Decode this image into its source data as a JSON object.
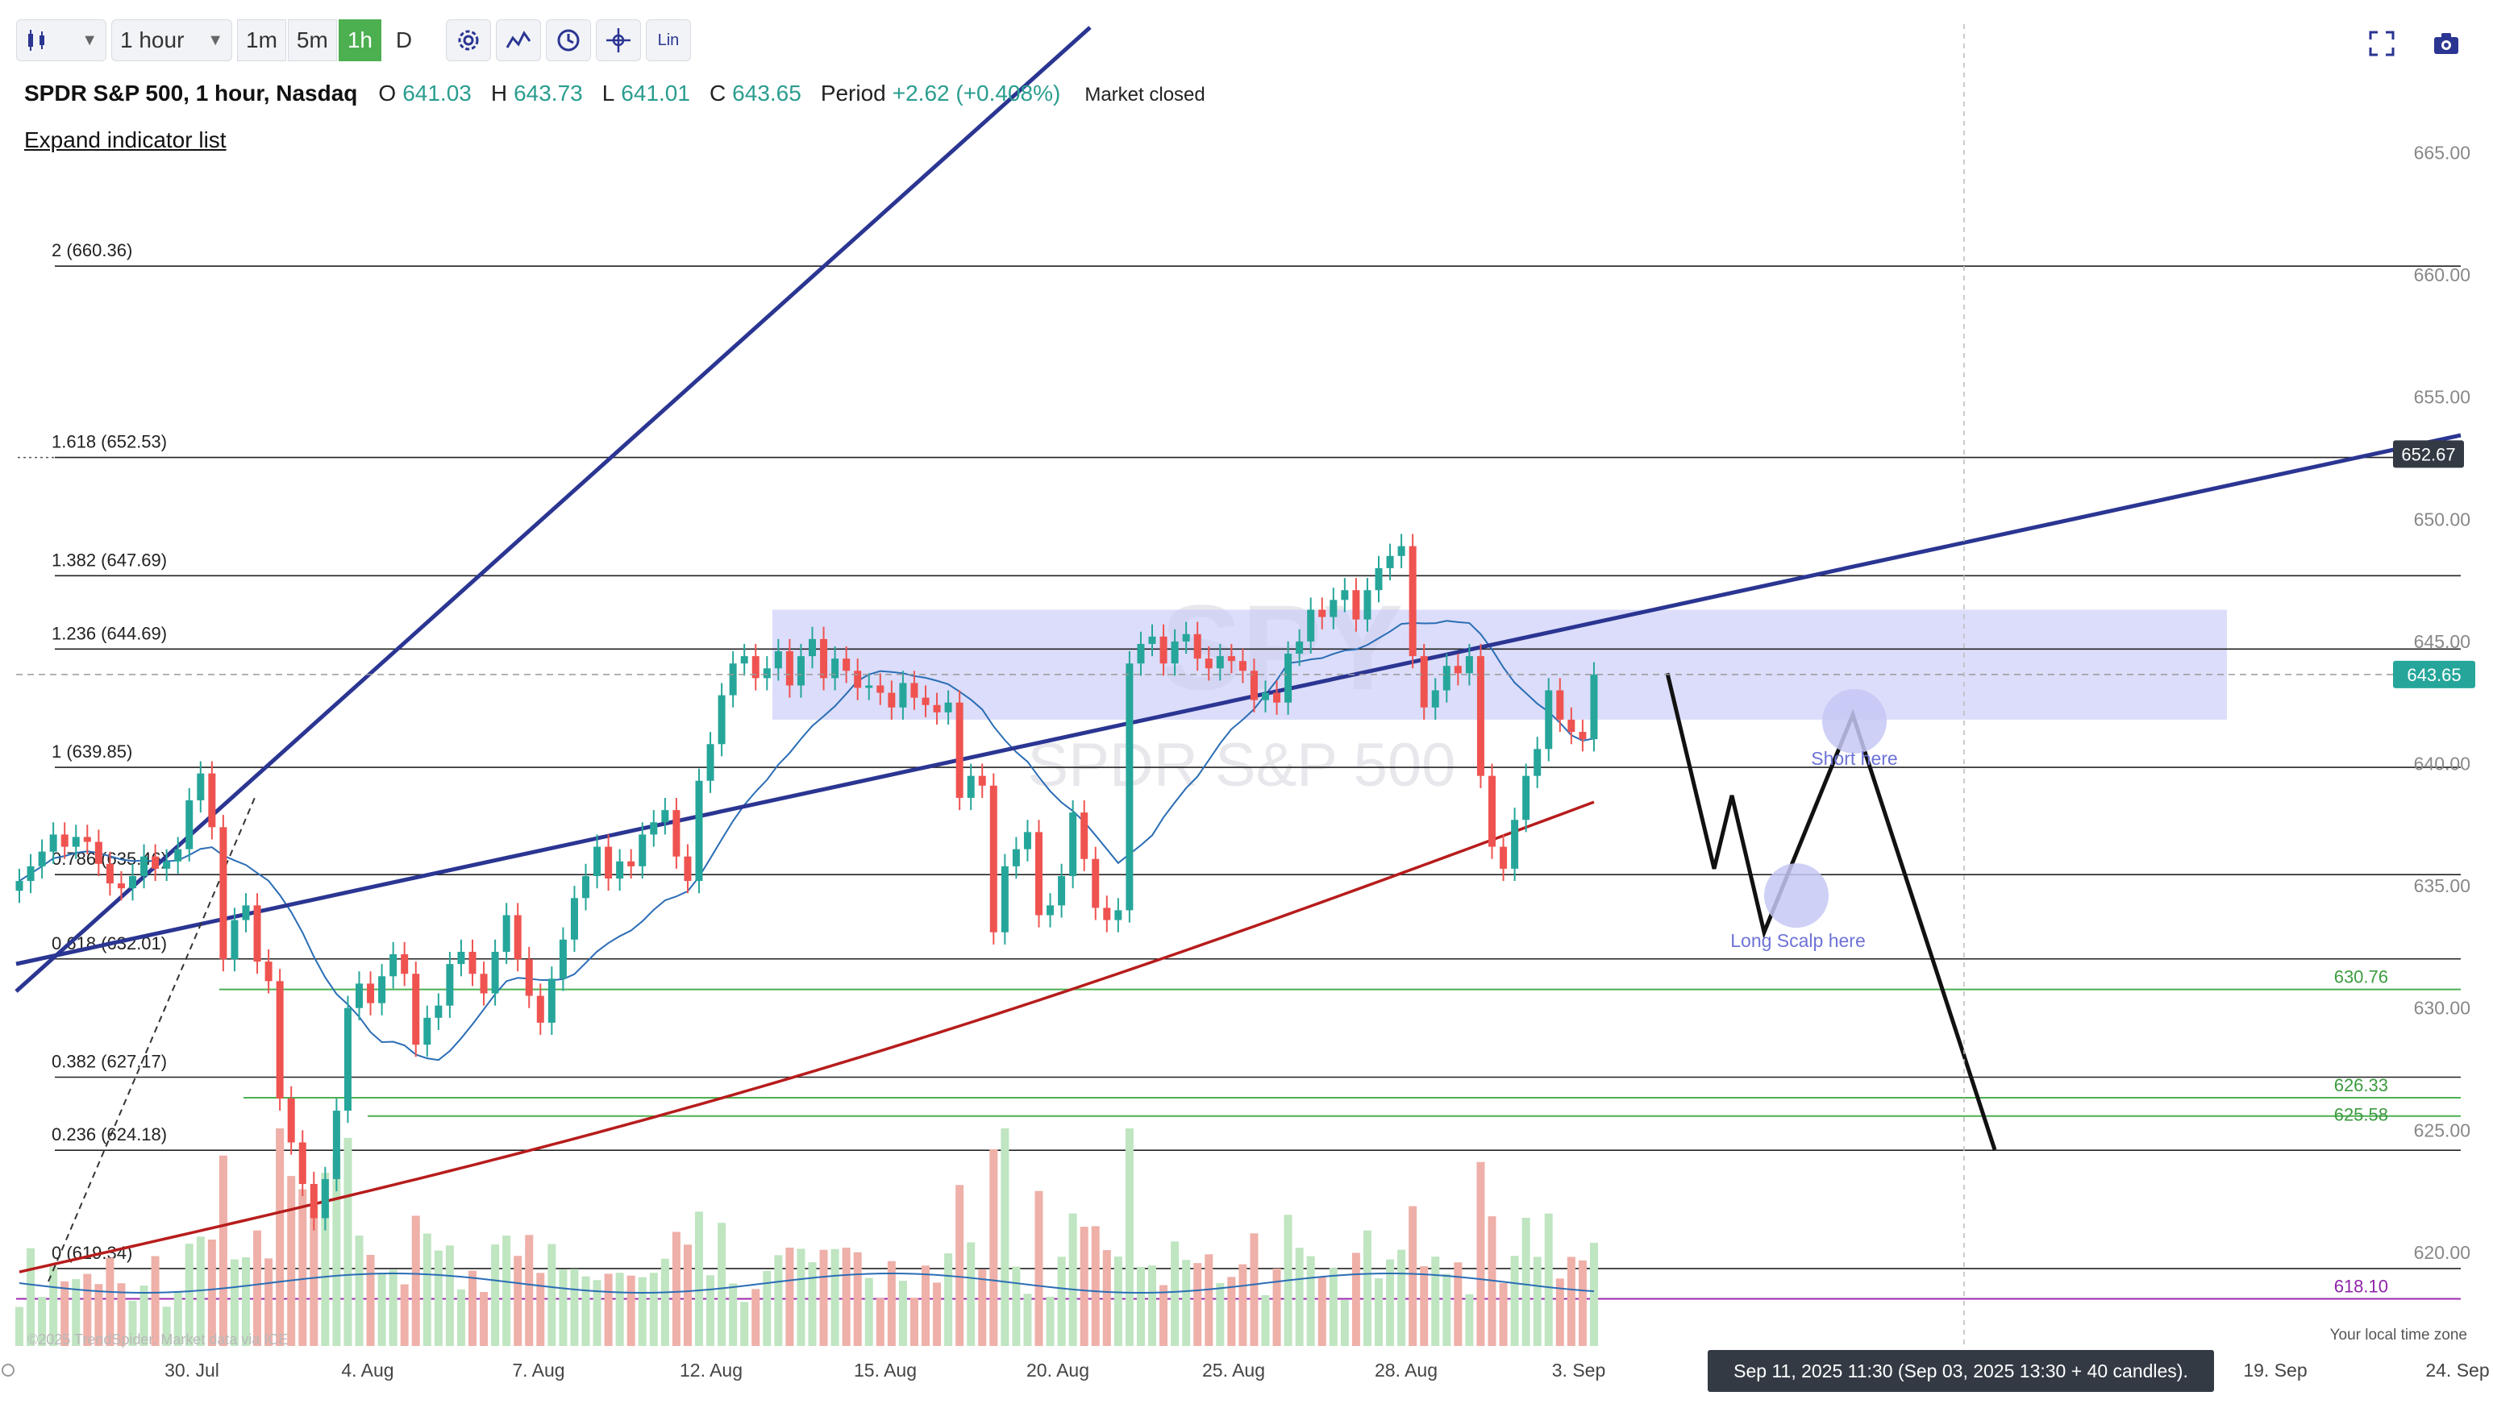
{
  "toolbar": {
    "chart_type_icon": "candlestick-icon",
    "interval_label": "1 hour",
    "timeframes": [
      "1m",
      "5m",
      "1h",
      "D"
    ],
    "active_timeframe": "1h",
    "icons": [
      "gear-icon",
      "indicators-icon",
      "clock-icon",
      "crosshair-icon"
    ],
    "scale_label": "Lin"
  },
  "header": {
    "symbol": "SPDR S&P 500, 1 hour, Nasdaq",
    "open_label": "O",
    "open": "641.03",
    "high_label": "H",
    "high": "643.73",
    "low_label": "L",
    "low": "641.01",
    "close_label": "C",
    "close": "643.65",
    "period_label": "Period",
    "period_change": "+2.62 (+0.408%)",
    "market_status": "Market closed",
    "expand_link": "Expand indicator list"
  },
  "top_right_icons": [
    "fullscreen-icon",
    "camera-icon"
  ],
  "watermark": {
    "big": "SPY",
    "small": "SPDR S&P 500"
  },
  "datetime_badge": "Sep 11, 2025 11:30 (Sep 03, 2025 13:30 + 40 candles).",
  "timezone_label": "Your local time zone",
  "copyright": "©2025 TrendSpider. Market data via ICE",
  "colors": {
    "up": "#26a69a",
    "down": "#ef5350",
    "trendline": "#2b3592",
    "zone": "#c7cbf7",
    "ma_blue": "#2a6db5",
    "ma_red": "#b71c1c",
    "support_green": "#4caf50",
    "fib": "#222222",
    "purple": "#9c27b0"
  },
  "chart_data": {
    "type": "candlestick",
    "title": "SPDR S&P 500, 1 hour, Nasdaq",
    "x_ticks": [
      "30. Jul",
      "4. Aug",
      "7. Aug",
      "12. Aug",
      "15. Aug",
      "20. Aug",
      "25. Aug",
      "28. Aug",
      "3. Sep",
      "19. Sep",
      "24. Sep"
    ],
    "y_ticks": [
      620.0,
      625.0,
      630.0,
      635.0,
      640.0,
      645.0,
      650.0,
      655.0,
      660.0,
      665.0
    ],
    "ylim": [
      617.0,
      671.0
    ],
    "last_price": 643.65,
    "price_marker": 652.67,
    "fib_levels": [
      {
        "label": "2 (660.36)",
        "value": 660.36
      },
      {
        "label": "1.618 (652.53)",
        "value": 652.53
      },
      {
        "label": "1.382 (647.69)",
        "value": 647.69
      },
      {
        "label": "1.236 (644.69)",
        "value": 644.69
      },
      {
        "label": "1 (639.85)",
        "value": 639.85
      },
      {
        "label": "0.786 (635.46)",
        "value": 635.46
      },
      {
        "label": "0.618 (632.01)",
        "value": 632.01
      },
      {
        "label": "0.382 (627.17)",
        "value": 627.17
      },
      {
        "label": "0.236 (624.18)",
        "value": 624.18
      },
      {
        "label": "0 (619.34)",
        "value": 619.34
      }
    ],
    "support_levels": [
      {
        "label": "630.76",
        "value": 630.76
      },
      {
        "label": "626.33",
        "value": 626.33
      },
      {
        "label": "625.58",
        "value": 625.58
      }
    ],
    "purple_level": {
      "label": "618.10",
      "value": 618.1
    },
    "zone": {
      "low": 641.8,
      "high": 646.3,
      "start": "13. Aug",
      "end": "16. Sep"
    },
    "annotations": [
      {
        "text": "Short here",
        "price": 642.0
      },
      {
        "text": "Long Scalp here",
        "price": 635.0
      }
    ],
    "projection_path": [
      643.7,
      635.7,
      638.7,
      633.1,
      642.0,
      624.2
    ],
    "candles_close": [
      635.2,
      635.8,
      636.4,
      637.1,
      636.6,
      637.0,
      636.8,
      635.9,
      635.1,
      634.9,
      635.4,
      636.2,
      635.7,
      636.0,
      636.5,
      638.5,
      639.6,
      637.4,
      632.0,
      633.6,
      634.2,
      631.9,
      631.1,
      626.3,
      624.5,
      622.8,
      621.4,
      623.0,
      625.8,
      630.0,
      631.0,
      630.2,
      631.3,
      632.2,
      631.4,
      628.5,
      629.6,
      630.1,
      631.8,
      632.3,
      631.4,
      630.6,
      632.3,
      633.8,
      632.0,
      630.5,
      629.4,
      631.2,
      632.8,
      634.5,
      635.4,
      636.6,
      635.3,
      636.0,
      635.8,
      637.1,
      637.6,
      638.1,
      636.2,
      635.2,
      639.3,
      640.8,
      642.8,
      644.1,
      644.4,
      643.5,
      643.9,
      644.6,
      643.2,
      644.4,
      645.1,
      643.5,
      644.3,
      643.8,
      643.1,
      643.2,
      642.9,
      642.3,
      643.3,
      642.7,
      642.4,
      642.1,
      642.5,
      638.6,
      639.5,
      639.1,
      633.1,
      635.8,
      636.5,
      637.2,
      633.8,
      634.2,
      635.4,
      638.0,
      636.1,
      634.1,
      633.6,
      634.0,
      644.1,
      644.9,
      645.2,
      644.1,
      645.0,
      645.3,
      644.3,
      643.9,
      644.4,
      644.2,
      643.8,
      642.6,
      642.9,
      642.5,
      644.5,
      645.0,
      646.3,
      646.0,
      646.7,
      647.1,
      645.9,
      647.1,
      648.0,
      648.5,
      648.9,
      644.4,
      642.3,
      643.0,
      644.0,
      643.7,
      644.4,
      639.5,
      636.6,
      635.7,
      637.7,
      639.5,
      640.6,
      643.0,
      641.8,
      641.3,
      641.0,
      643.65
    ],
    "volume_scale": "relative"
  }
}
